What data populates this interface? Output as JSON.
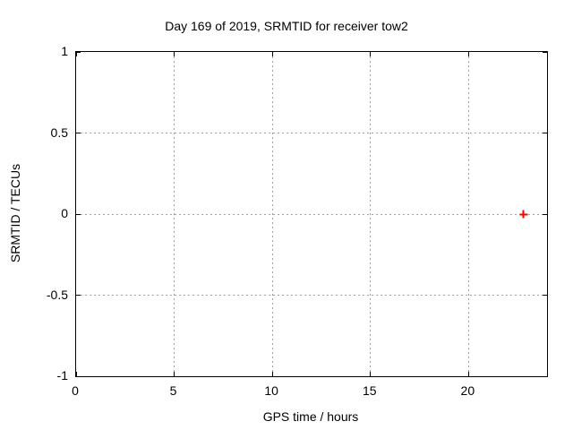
{
  "chart_data": {
    "type": "scatter",
    "title": "Day 169 of 2019, SRMTID for receiver tow2",
    "xlabel": "GPS time / hours",
    "ylabel": "SRMTID / TECUs",
    "xlim": [
      0,
      24
    ],
    "ylim": [
      -1,
      1
    ],
    "x_ticks": [
      {
        "value": 0,
        "label": "0"
      },
      {
        "value": 5,
        "label": "5"
      },
      {
        "value": 10,
        "label": "10"
      },
      {
        "value": 15,
        "label": "15"
      },
      {
        "value": 20,
        "label": "20"
      }
    ],
    "y_ticks": [
      {
        "value": 1,
        "label": "1"
      },
      {
        "value": 0.5,
        "label": "0.5"
      },
      {
        "value": 0,
        "label": "0"
      },
      {
        "value": -0.5,
        "label": "-0.5"
      },
      {
        "value": -1,
        "label": "-1"
      }
    ],
    "grid": true,
    "legend_position": "none",
    "series": [
      {
        "name": "SRMTID",
        "marker": "plus",
        "color": "#ff0000",
        "points": [
          {
            "x": 22.8,
            "y": 0
          }
        ]
      }
    ]
  },
  "colors": {
    "background": "#ffffff",
    "border": "#000000",
    "grid": "#a0a0a0",
    "text": "#000000",
    "point": "#ff0000"
  }
}
